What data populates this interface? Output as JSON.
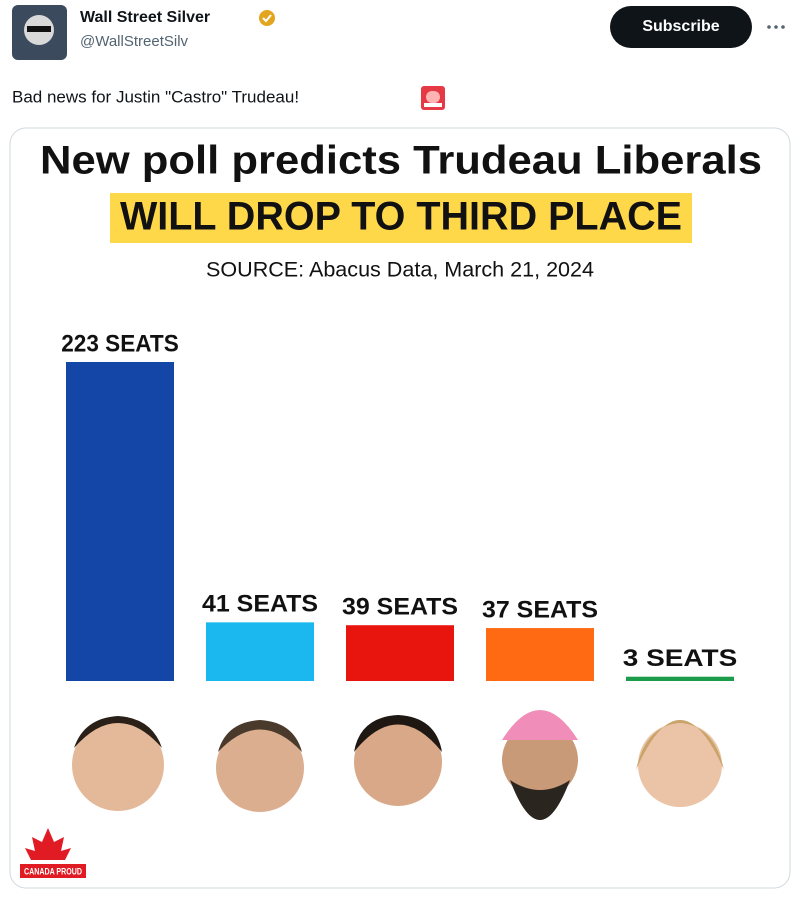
{
  "tweet": {
    "name": "Wall Street Silver",
    "handle": "@WallStreetSilv",
    "button": "Subscribe",
    "text": "Bad news for Justin \"Castro\" Trudeau!"
  },
  "chart_data": {
    "type": "bar",
    "title": "New poll predicts Trudeau Liberals",
    "subtitle": "WILL DROP TO THIRD PLACE",
    "source": "SOURCE: Abacus Data, March 21, 2024",
    "values": [
      223,
      41,
      39,
      37,
      3
    ],
    "value_labels": [
      "223 SEATS",
      "41 SEATS",
      "39 SEATS",
      "37 SEATS",
      "3 SEATS"
    ],
    "colors": [
      "#1446a8",
      "#1ab8ef",
      "#e8140e",
      "#ff6a13",
      "#1a9c4a"
    ],
    "logo": "CANADA PROUD"
  }
}
